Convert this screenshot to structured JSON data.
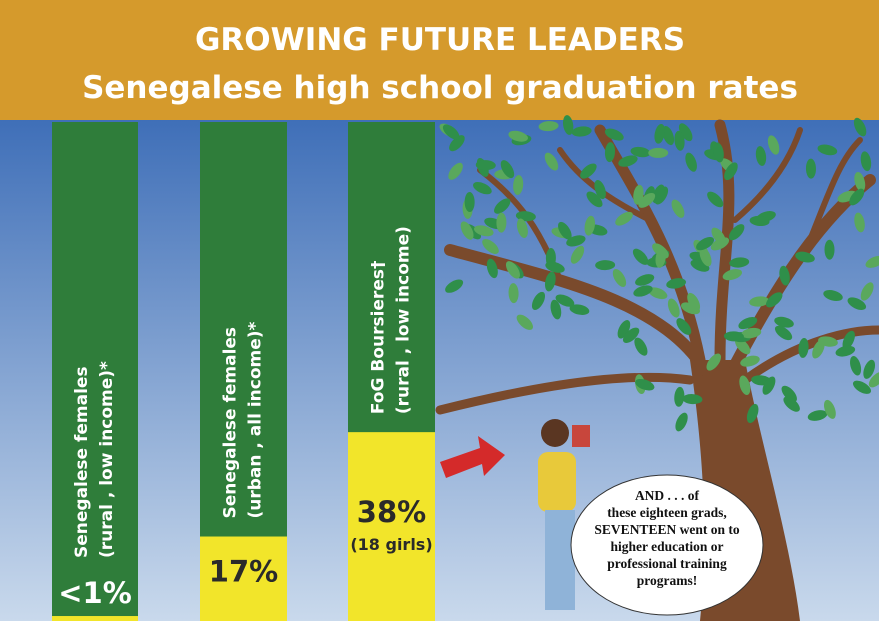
{
  "chart_data": {
    "type": "bar",
    "title": [
      "GROWING FUTURE LEADERS",
      "Senegalese high school graduation rates"
    ],
    "categories": [
      [
        "Senegalese females",
        "(rural , low income)*"
      ],
      [
        "Senegalese females",
        "(urban , all income)*"
      ],
      [
        "FoG Boursieres†",
        "(rural , low income)"
      ]
    ],
    "values": [
      1,
      17,
      38
    ],
    "value_labels": [
      "<1%",
      "17%",
      "38%"
    ],
    "color": "#f2e52a",
    "annotation": "(18 girls)",
    "callout": [
      "AND . . . of",
      "these eighteen grads,",
      "SEVENTEEN went on to",
      "higher education or",
      "professional training",
      "programs!"
    ]
  }
}
